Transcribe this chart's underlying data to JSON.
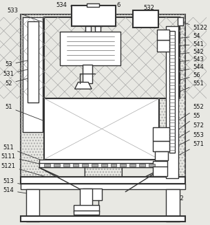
{
  "bg_color": "#e8e8e3",
  "line_color": "#333333",
  "hatch_color": "#777777",
  "lw_main": 1.5,
  "lw_med": 1.0,
  "lw_thin": 0.6,
  "fs_label": 6.0
}
